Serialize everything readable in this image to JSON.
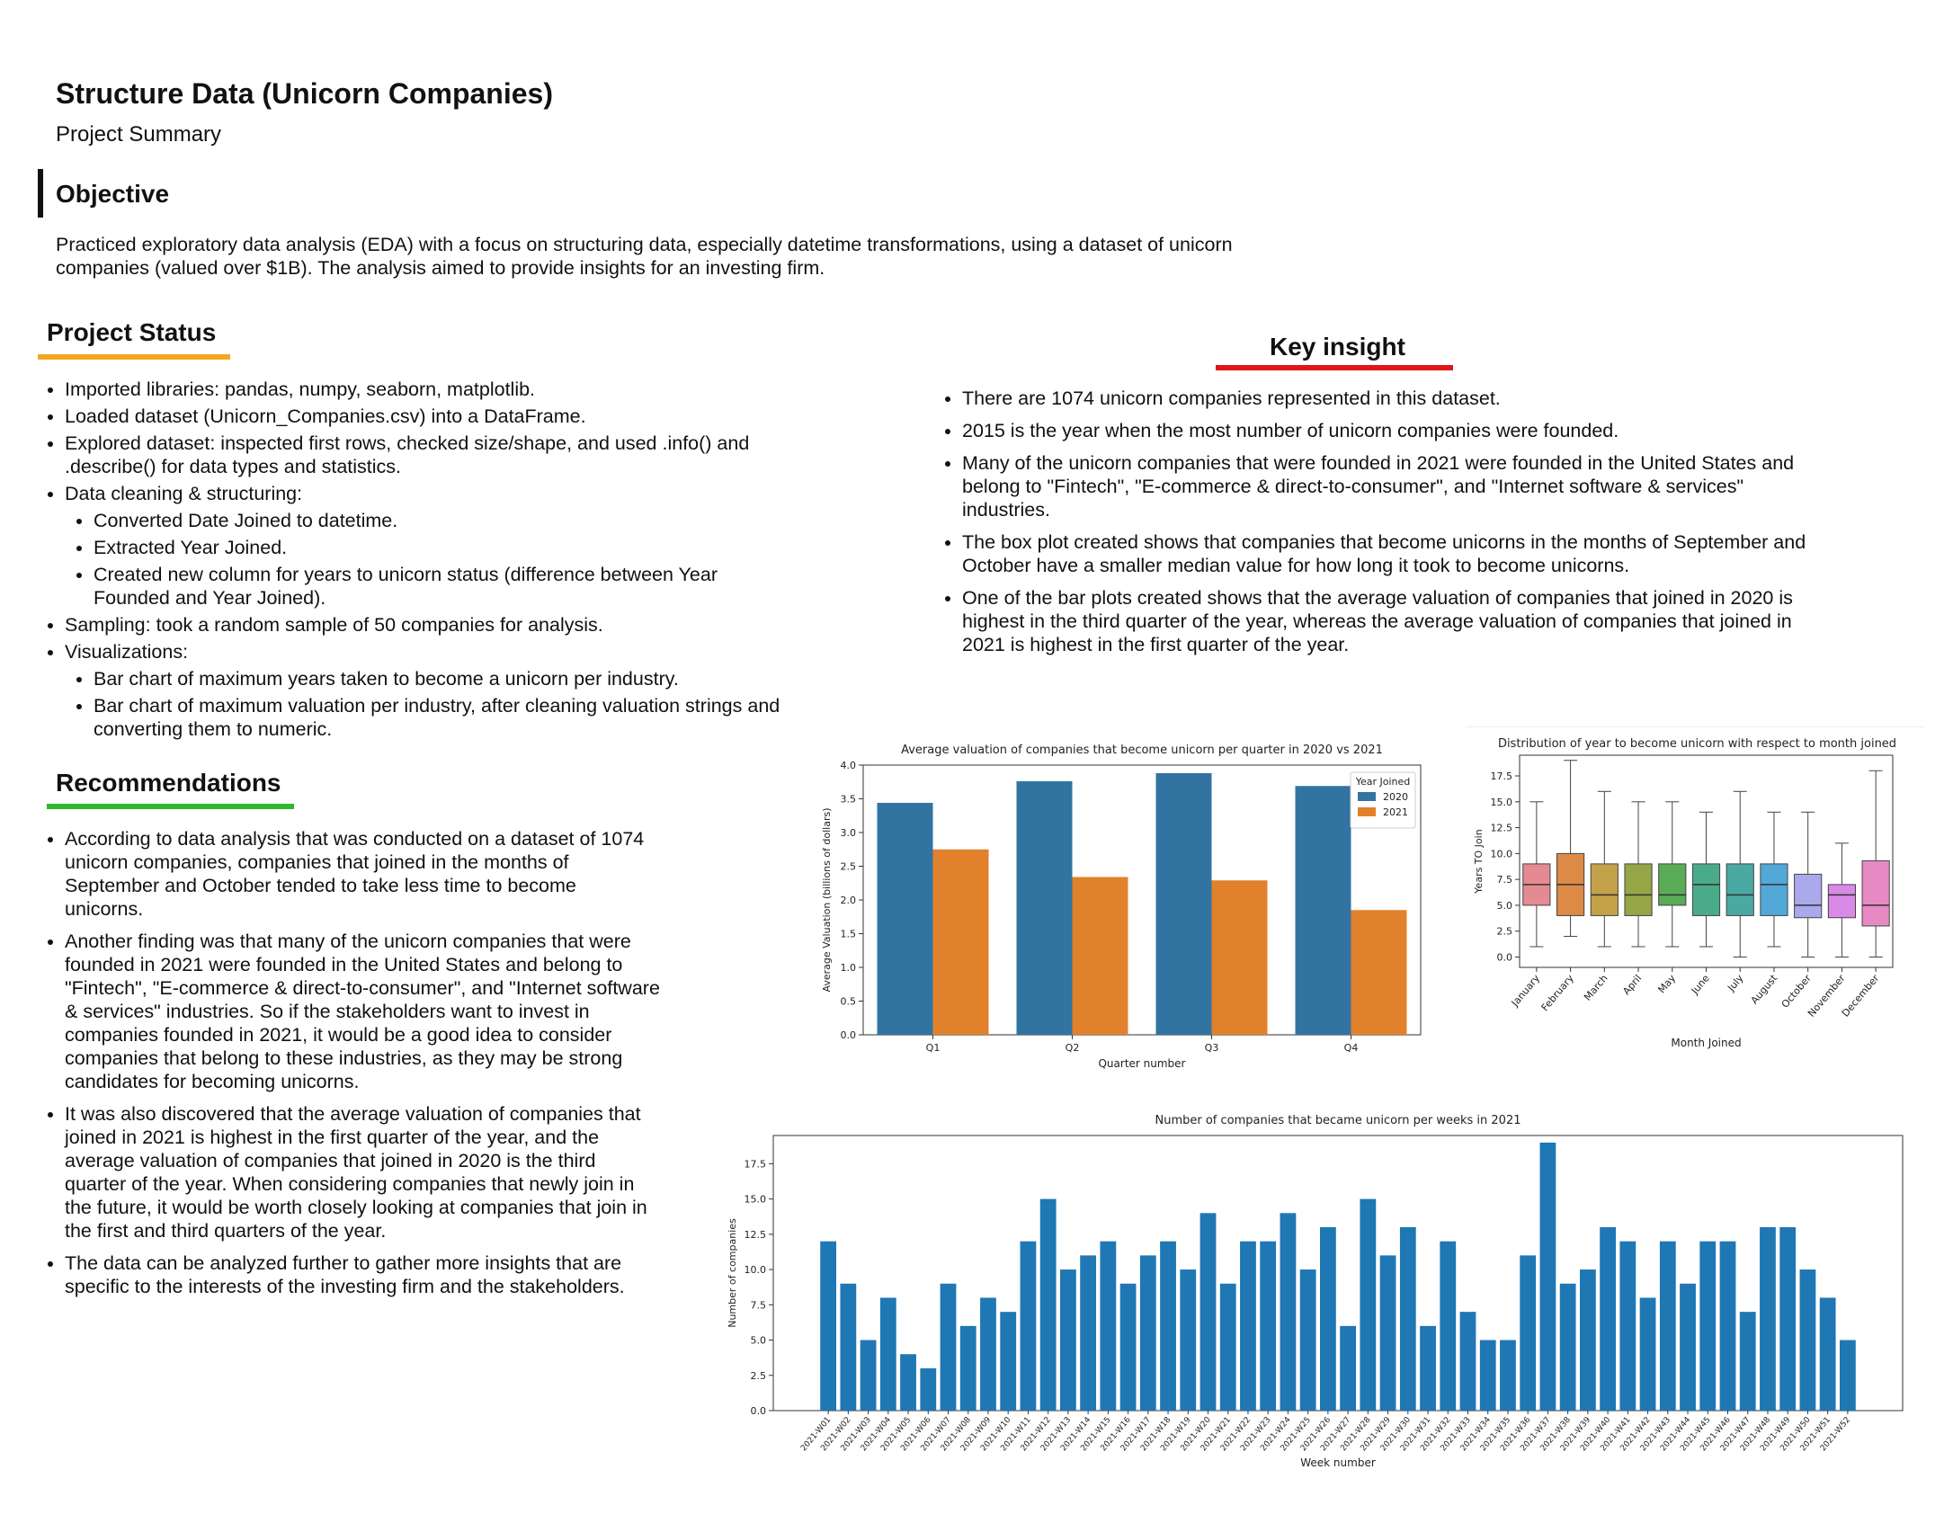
{
  "title": "Structure Data (Unicorn Companies)",
  "subtitle": "Project Summary",
  "objective": {
    "heading": "Objective",
    "text": "Practiced exploratory data analysis (EDA) with a focus on structuring data, especially datetime transformations, using a dataset of unicorn companies (valued over $1B). The analysis aimed to provide insights for an investing firm."
  },
  "project_status": {
    "heading": "Project Status",
    "underline_color": "#f5a623",
    "items": [
      {
        "text": "Imported libraries: pandas, numpy, seaborn, matplotlib.",
        "sub": []
      },
      {
        "text": "Loaded dataset (Unicorn_Companies.csv) into a DataFrame.",
        "sub": []
      },
      {
        "text": "Explored dataset: inspected first rows, checked size/shape, and used .info() and .describe() for data types and statistics.",
        "sub": []
      },
      {
        "text": "Data cleaning & structuring:",
        "sub": [
          "Converted Date Joined to datetime.",
          "Extracted Year Joined.",
          "Created new column for years to unicorn status (difference between Year Founded and Year Joined)."
        ]
      },
      {
        "text": "Sampling: took a random sample of 50 companies for analysis.",
        "sub": []
      },
      {
        "text": "Visualizations:",
        "sub": [
          "Bar chart of maximum years taken to become a unicorn per industry.",
          "Bar chart of maximum valuation per industry, after cleaning valuation strings and converting them to numeric."
        ]
      }
    ]
  },
  "recommendations": {
    "heading": "Recommendations",
    "underline_color": "#2db82d",
    "items": [
      "According to data analysis that was conducted on a dataset of 1074 unicorn companies, companies that joined in the months of September and October tended to take less time to become unicorns.",
      "Another finding was that many of the unicorn companies that were founded in 2021 were founded in the United States and belong to \"Fintech\", \"E-commerce & direct-to-consumer\", and \"Internet software & services\" industries. So if the stakeholders want to invest in companies founded in 2021, it would be a good idea to consider companies that belong to these industries, as they may be strong candidates for becoming unicorns.",
      "It was also discovered that the average valuation of companies that joined in 2021 is highest in the first quarter of the year, and the average valuation of companies that joined in 2020 is the third quarter of the year. When considering companies that newly join in the future, it would be worth closely looking at companies that join in the first and third quarters of the year.",
      "The data can be analyzed further to gather more insights that are specific to the interests of the investing firm and the stakeholders."
    ]
  },
  "key_insight": {
    "heading": "Key insight",
    "underline_color": "#e0161b",
    "items": [
      "There are 1074 unicorn companies represented in this dataset.",
      "2015 is the year when the most number of unicorn companies were founded.",
      "Many of the unicorn companies that were founded in 2021 were founded in the United States and belong to \"Fintech\", \"E-commerce & direct-to-consumer\", and \"Internet software & services\" industries.",
      "The box plot created shows that companies that become unicorns in the months of September and October have a smaller median value for how long it took to become unicorns.",
      "One of the bar plots created shows that the average valuation of companies that joined in 2020 is highest in the third quarter of the year, whereas the average valuation of companies that joined in 2021 is highest in the first quarter of the year."
    ]
  },
  "chart_data": [
    {
      "type": "bar",
      "title": "Average valuation of companies that become unicorn per quarter in 2020 vs 2021",
      "xlabel": "Quarter number",
      "ylabel": "Average Valuation (billions of dollars)",
      "categories": [
        "Q1",
        "Q2",
        "Q3",
        "Q4"
      ],
      "ylim": [
        0,
        4.0
      ],
      "yticks": [
        0.0,
        0.5,
        1.0,
        1.5,
        2.0,
        2.5,
        3.0,
        3.5,
        4.0
      ],
      "ytick_labels": [
        "0.0",
        "0.5",
        "1.0",
        "1.5",
        "2.0",
        "2.5",
        "3.0",
        "3.5",
        "4.0"
      ],
      "legend_title": "Year Joined",
      "legend_position": "top-right",
      "series": [
        {
          "name": "2020",
          "color": "#3274a1",
          "values": [
            3.44,
            3.76,
            3.88,
            3.69
          ]
        },
        {
          "name": "2021",
          "color": "#e1812c",
          "values": [
            2.75,
            2.34,
            2.29,
            1.85
          ]
        }
      ]
    },
    {
      "type": "box",
      "title": "Distribution of year to become unicorn with respect to month joined",
      "xlabel": "Month Joined",
      "ylabel": "Years TO Join",
      "ylim": [
        -1,
        19.5
      ],
      "yticks": [
        0.0,
        2.5,
        5.0,
        7.5,
        10.0,
        12.5,
        15.0,
        17.5
      ],
      "ytick_labels": [
        "0.0",
        "2.5",
        "5.0",
        "7.5",
        "10.0",
        "12.5",
        "15.0",
        "17.5"
      ],
      "categories": [
        "January",
        "February",
        "March",
        "April",
        "May",
        "June",
        "July",
        "August",
        "October",
        "November",
        "December"
      ],
      "boxes": [
        {
          "min": 1,
          "q1": 5,
          "median": 7,
          "q3": 9,
          "max": 15,
          "color": "#e58a93"
        },
        {
          "min": 2,
          "q1": 4,
          "median": 7,
          "q3": 10,
          "max": 19,
          "color": "#dd8a47"
        },
        {
          "min": 1,
          "q1": 4,
          "median": 6,
          "q3": 9,
          "max": 16,
          "color": "#c4a24a"
        },
        {
          "min": 1,
          "q1": 4,
          "median": 6,
          "q3": 9,
          "max": 15,
          "color": "#96a545"
        },
        {
          "min": 1,
          "q1": 5,
          "median": 6,
          "q3": 9,
          "max": 15,
          "color": "#5aab55"
        },
        {
          "min": 1,
          "q1": 4,
          "median": 7,
          "q3": 9,
          "max": 14,
          "color": "#4aab8b"
        },
        {
          "min": 0,
          "q1": 4,
          "median": 6,
          "q3": 9,
          "max": 16,
          "color": "#4aa9a3"
        },
        {
          "min": 1,
          "q1": 4,
          "median": 7,
          "q3": 9,
          "max": 14,
          "color": "#52a8d6"
        },
        {
          "min": 0,
          "q1": 3.8,
          "median": 5,
          "q3": 8,
          "max": 14,
          "color": "#a9a9ec"
        },
        {
          "min": 0,
          "q1": 3.8,
          "median": 6,
          "q3": 7,
          "max": 11,
          "color": "#d88ae6"
        },
        {
          "min": 0,
          "q1": 3,
          "median": 5,
          "q3": 9.3,
          "max": 18,
          "color": "#e68ac4"
        }
      ]
    },
    {
      "type": "bar",
      "title": "Number of companies that became unicorn per weeks in 2021",
      "xlabel": "Week number",
      "ylabel": "Number of companies",
      "ylim": [
        0,
        19.5
      ],
      "yticks": [
        0.0,
        2.5,
        5.0,
        7.5,
        10.0,
        12.5,
        15.0,
        17.5
      ],
      "ytick_labels": [
        "0.0",
        "2.5",
        "5.0",
        "7.5",
        "10.0",
        "12.5",
        "15.0",
        "17.5"
      ],
      "color": "#1f77b4",
      "categories": [
        "2021-W01",
        "2021-W02",
        "2021-W03",
        "2021-W04",
        "2021-W05",
        "2021-W06",
        "2021-W07",
        "2021-W08",
        "2021-W09",
        "2021-W10",
        "2021-W11",
        "2021-W12",
        "2021-W13",
        "2021-W14",
        "2021-W15",
        "2021-W16",
        "2021-W17",
        "2021-W18",
        "2021-W19",
        "2021-W20",
        "2021-W21",
        "2021-W22",
        "2021-W23",
        "2021-W24",
        "2021-W25",
        "2021-W26",
        "2021-W27",
        "2021-W28",
        "2021-W29",
        "2021-W30",
        "2021-W31",
        "2021-W32",
        "2021-W33",
        "2021-W34",
        "2021-W35",
        "2021-W36",
        "2021-W37",
        "2021-W38",
        "2021-W39",
        "2021-W40",
        "2021-W41",
        "2021-W42",
        "2021-W43",
        "2021-W44",
        "2021-W45",
        "2021-W46",
        "2021-W47",
        "2021-W48",
        "2021-W49",
        "2021-W50",
        "2021-W51",
        "2021-W52"
      ],
      "values": [
        12,
        9,
        5,
        8,
        4,
        3,
        9,
        6,
        8,
        7,
        12,
        15,
        10,
        11,
        12,
        9,
        11,
        12,
        10,
        14,
        9,
        12,
        12,
        14,
        10,
        13,
        6,
        15,
        11,
        13,
        6,
        12,
        7,
        5,
        5,
        11,
        19,
        9,
        10,
        13,
        12,
        8,
        12,
        9,
        12,
        12,
        7,
        13,
        13,
        10,
        8,
        5
      ]
    }
  ]
}
